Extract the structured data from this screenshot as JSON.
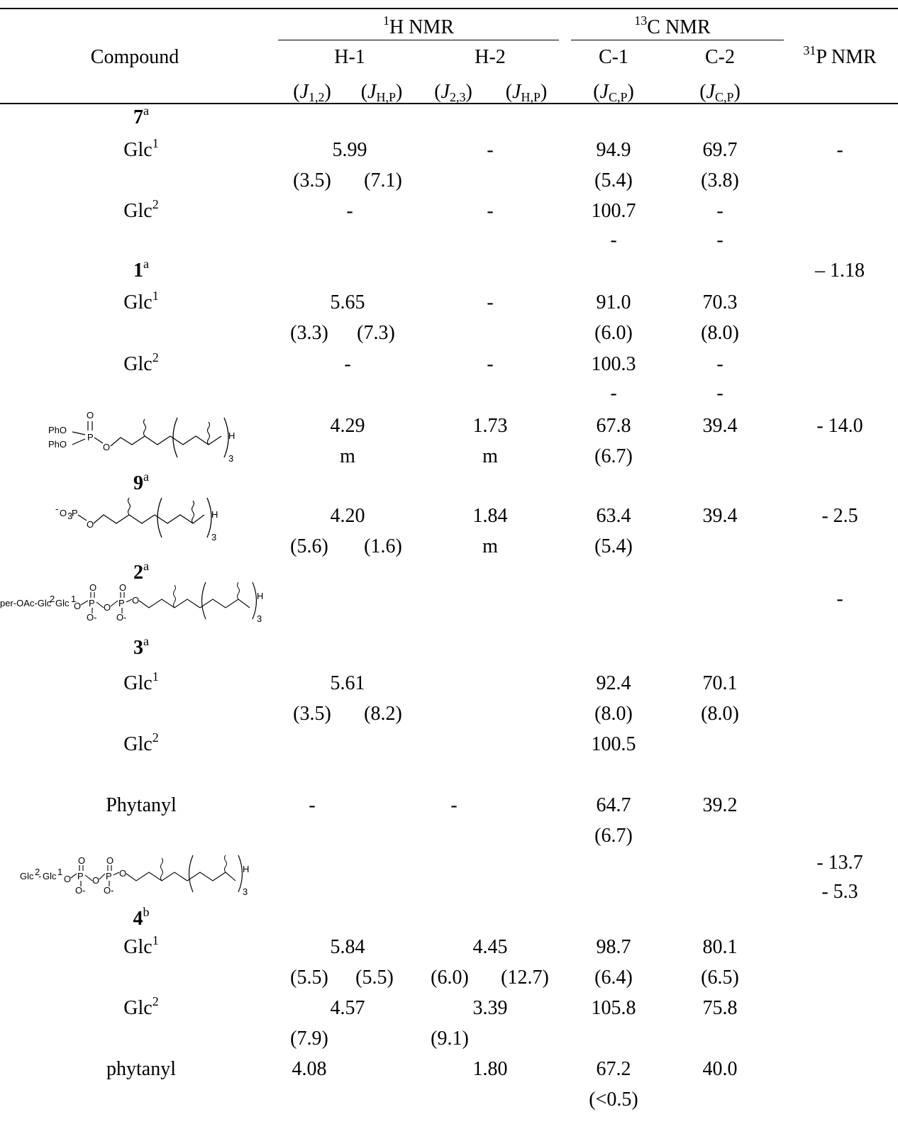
{
  "header": {
    "h_nmr": {
      "sup": "1",
      "text": "H NMR"
    },
    "c_nmr": {
      "sup": "13",
      "text": "C NMR"
    },
    "p_nmr": {
      "sup": "31",
      "text": "P NMR"
    },
    "compound": "Compound",
    "h1": "H-1",
    "h2": "H-2",
    "c1": "C-1",
    "c2": "C-2",
    "j12": {
      "open": "(",
      "J": "J",
      "sub": "1,2",
      "close": ")"
    },
    "jhp1": {
      "open": "(",
      "J": "J",
      "sub": "H,P",
      "close": ")"
    },
    "j23": {
      "open": "(",
      "J": "J",
      "sub": "2,3",
      "close": ")"
    },
    "jhp2": {
      "open": "(",
      "J": "J",
      "sub": "H,P",
      "close": ")"
    },
    "jcp1": {
      "open": "(",
      "J": "J",
      "sub": "C,P",
      "close": ")"
    },
    "jcp2": {
      "open": "(",
      "J": "J",
      "sub": "C,P",
      "close": ")"
    }
  },
  "labels": {
    "glc": "Glc",
    "sup1": "1",
    "sup2": "2",
    "supa": "a",
    "supb": "b",
    "c7": "7",
    "c1": "1",
    "c9": "9",
    "c2": "2",
    "c3": "3",
    "c4": "4",
    "phytanyl_cap": "Phytanyl",
    "phytanyl_low": "phytanyl"
  },
  "structures": {
    "pho1": "PhO",
    "pho2": "PhO",
    "p": "P",
    "o": "O",
    "h": "H",
    "n3": "3",
    "o3p": "O",
    "o3p_sub": "3",
    "o3p_tail": "P",
    "neg": "-",
    "per_oac": "per-OAc-Glc",
    "glc2glc1": "Glc",
    "o_minus": "O-"
  },
  "values": {
    "r7_glc1_h1": "5.99",
    "r7_glc1_h2": "-",
    "r7_glc1_c1": "94.9",
    "r7_glc1_c2": "69.7",
    "r7_p": "-",
    "r7_glc1_j12": "(3.5)",
    "r7_glc1_jhp": "(7.1)",
    "r7_glc1_jc1": "(5.4)",
    "r7_glc1_jc2": "(3.8)",
    "r7_glc2_h1": "-",
    "r7_glc2_h2": "-",
    "r7_glc2_c1": "100.7",
    "r7_glc2_c2": "-",
    "r7_glc2_jc1": "-",
    "r7_glc2_jc2": "-",
    "r1_p": "– 1.18",
    "r1_glc1_h1": "5.65",
    "r1_glc1_h2": "-",
    "r1_glc1_c1": "91.0",
    "r1_glc1_c2": "70.3",
    "r1_glc1_j12": "(3.3)",
    "r1_glc1_jhp": "(7.3)",
    "r1_glc1_jc1": "(6.0)",
    "r1_glc1_jc2": "(8.0)",
    "r1_glc2_h1": "-",
    "r1_glc2_h2": "-",
    "r1_glc2_c1": "100.3",
    "r1_glc2_c2": "-",
    "r1_glc2_jc1": "-",
    "r1_glc2_jc2": "-",
    "r9_h1": "4.29",
    "r9_h2": "1.73",
    "r9_c1": "67.8",
    "r9_c2": "39.4",
    "r9_p": "- 14.0",
    "r9_m1": "m",
    "r9_m2": "m",
    "r9_jc1": "(6.7)",
    "r2_h1": "4.20",
    "r2_h2": "1.84",
    "r2_c1": "63.4",
    "r2_c2": "39.4",
    "r2_p": "- 2.5",
    "r2_j12": "(5.6)",
    "r2_jhp": "(1.6)",
    "r2_m": "m",
    "r2_jc1": "(5.4)",
    "r3_p": "-",
    "r3_glc1_h1": "5.61",
    "r3_glc1_c1": "92.4",
    "r3_glc1_c2": "70.1",
    "r3_glc1_j12": "(3.5)",
    "r3_glc1_jhp": "(8.2)",
    "r3_glc1_jc1": "(8.0)",
    "r3_glc1_jc2": "(8.0)",
    "r3_glc2_c1": "100.5",
    "r3_phy_h1": "-",
    "r3_phy_h2": "-",
    "r3_phy_c1": "64.7",
    "r3_phy_c2": "39.2",
    "r3_phy_jc1": "(6.7)",
    "r4_p1": "- 13.7",
    "r4_p2": "- 5.3",
    "r4_glc1_h1": "5.84",
    "r4_glc1_h2": "4.45",
    "r4_glc1_c1": "98.7",
    "r4_glc1_c2": "80.1",
    "r4_glc1_j12": "(5.5)",
    "r4_glc1_jhp": "(5.5)",
    "r4_glc1_j23": "(6.0)",
    "r4_glc1_jhp2": "(12.7)",
    "r4_glc1_jc1": "(6.4)",
    "r4_glc1_jc2": "(6.5)",
    "r4_glc2_h1": "4.57",
    "r4_glc2_h2": "3.39",
    "r4_glc2_c1": "105.8",
    "r4_glc2_c2": "75.8",
    "r4_glc2_j12": "(7.9)",
    "r4_glc2_j23": "(9.1)",
    "r4_phy_h1": "4.08",
    "r4_phy_h2": "1.80",
    "r4_phy_c1": "67.2",
    "r4_phy_c2": "40.0",
    "r4_phy_jc1": "(<0.5)"
  }
}
